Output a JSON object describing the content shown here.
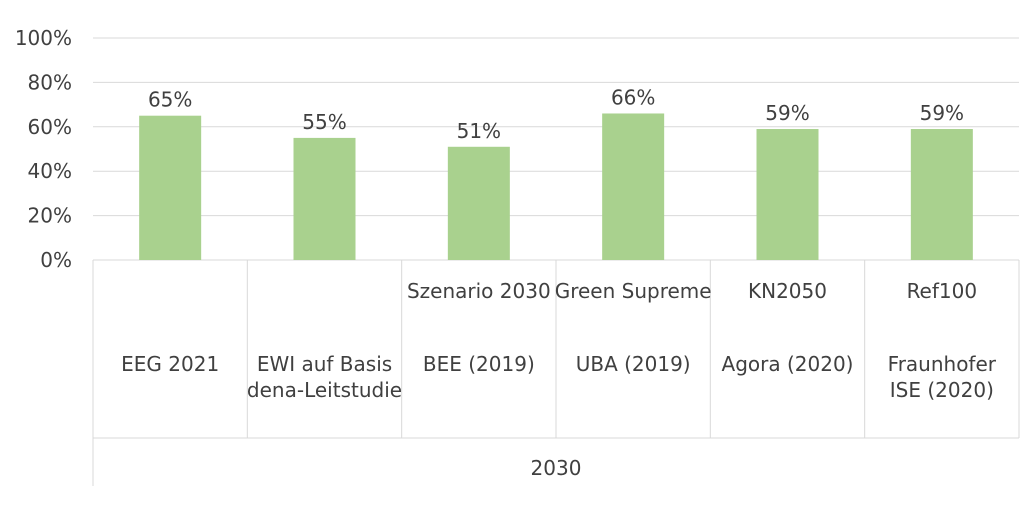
{
  "chart_data": {
    "type": "bar",
    "categories": [
      {
        "scenario": "",
        "source": "EEG 2021"
      },
      {
        "scenario": "",
        "source": "EWI auf Basis dena-Leitstudie"
      },
      {
        "scenario": "Szenario 2030",
        "source": "BEE (2019)"
      },
      {
        "scenario": "Green Supreme",
        "source": "UBA (2019)"
      },
      {
        "scenario": "KN2050",
        "source": "Agora (2020)"
      },
      {
        "scenario": "Ref100",
        "source": "Fraunhofer ISE (2020)"
      }
    ],
    "values": [
      65,
      55,
      51,
      66,
      59,
      59
    ],
    "data_labels": [
      "65%",
      "55%",
      "51%",
      "66%",
      "59%",
      "59%"
    ],
    "group_label": "2030",
    "yticks": [
      "0%",
      "20%",
      "40%",
      "60%",
      "80%",
      "100%"
    ],
    "ylim": [
      0,
      100
    ],
    "grid": true,
    "colors": {
      "bar": "#a9d18e",
      "grid": "#d9d9d9",
      "text": "#404040"
    }
  }
}
